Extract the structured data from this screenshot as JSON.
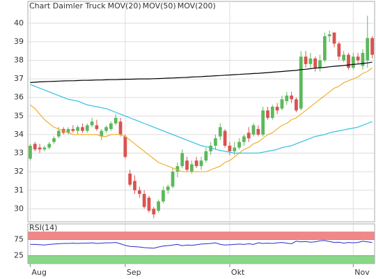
{
  "chart_data": [
    {
      "type": "candlestick",
      "title": "Chart Daimler Truck",
      "categories": [
        "Aug",
        null,
        null,
        null,
        null,
        null,
        null,
        null,
        null,
        null,
        null,
        null,
        null,
        null,
        null,
        null,
        null,
        null,
        null,
        null,
        "Sep",
        null,
        null,
        null,
        null,
        null,
        null,
        null,
        null,
        null,
        null,
        null,
        null,
        null,
        null,
        null,
        null,
        null,
        null,
        null,
        null,
        null,
        "Okt",
        null,
        null,
        null,
        null,
        null,
        null,
        null,
        null,
        null,
        null,
        null,
        null,
        null,
        null,
        null,
        null,
        null,
        null,
        null,
        null,
        null,
        null,
        null,
        null,
        null,
        "Nov",
        null,
        null,
        null,
        null
      ],
      "open": [
        32.7,
        33.5,
        33.3,
        33.2,
        33.3,
        33.6,
        33.9,
        34.3,
        34.1,
        34.3,
        34.2,
        34.4,
        34.2,
        34.5,
        34.5,
        33.9,
        34.2,
        34.3,
        34.6,
        34.7,
        33.9,
        31.9,
        31.5,
        31.0,
        30.8,
        30.6,
        30.0,
        29.9,
        30.4,
        31.0,
        31.2,
        32.0,
        32.3,
        32.6,
        32.0,
        32.6,
        32.3,
        32.6,
        33.1,
        33.4,
        33.9,
        34.2,
        33.4,
        33.1,
        33.3,
        33.6,
        34.1,
        34.0,
        34.3,
        34.0,
        35.3,
        34.9,
        35.5,
        35.4,
        35.8,
        36.1,
        35.9,
        35.4,
        38.2,
        37.8,
        38.1,
        37.6,
        38.0,
        39.3,
        39.5,
        38.9,
        38.0,
        38.3,
        37.6,
        38.2,
        37.7,
        38.0,
        39.2
      ],
      "high": [
        33.5,
        33.6,
        33.5,
        33.4,
        33.6,
        33.9,
        34.4,
        34.4,
        34.4,
        34.5,
        34.5,
        34.6,
        34.6,
        34.9,
        34.8,
        34.3,
        34.5,
        34.7,
        35.1,
        34.9,
        34.0,
        32.1,
        31.8,
        31.2,
        31.0,
        30.7,
        30.1,
        30.5,
        31.2,
        31.3,
        32.2,
        32.5,
        33.2,
        32.8,
        32.6,
        32.8,
        32.8,
        33.3,
        33.6,
        34.0,
        34.6,
        34.3,
        33.6,
        33.6,
        33.8,
        34.0,
        34.4,
        34.6,
        34.5,
        35.5,
        35.5,
        35.6,
        35.7,
        36.1,
        36.3,
        36.3,
        36.0,
        38.5,
        38.5,
        38.4,
        38.2,
        38.3,
        39.5,
        39.6,
        39.5,
        39.0,
        38.5,
        38.4,
        38.4,
        38.4,
        38.6,
        40.4,
        39.3
      ],
      "low": [
        32.6,
        33.1,
        33.0,
        33.1,
        33.2,
        33.5,
        33.8,
        34.0,
        34.0,
        34.1,
        34.0,
        34.1,
        34.1,
        34.4,
        34.2,
        33.7,
        34.1,
        34.2,
        34.5,
        33.9,
        32.7,
        31.2,
        30.8,
        30.6,
        30.0,
        29.8,
        29.5,
        29.8,
        30.3,
        30.8,
        31.1,
        31.7,
        32.2,
        32.0,
        31.9,
        32.2,
        32.1,
        32.5,
        32.9,
        33.2,
        33.7,
        33.3,
        32.9,
        32.9,
        33.2,
        33.4,
        33.6,
        33.9,
        33.9,
        33.9,
        34.8,
        34.8,
        35.1,
        35.3,
        35.6,
        35.7,
        35.2,
        35.3,
        37.6,
        37.6,
        37.4,
        37.4,
        37.9,
        39.0,
        38.7,
        38.0,
        37.9,
        37.5,
        37.5,
        37.8,
        37.5,
        37.6,
        38.1
      ],
      "close": [
        33.4,
        33.2,
        33.2,
        33.3,
        33.5,
        33.8,
        34.2,
        34.1,
        34.3,
        34.2,
        34.4,
        34.2,
        34.5,
        34.7,
        34.3,
        34.2,
        34.4,
        34.6,
        34.9,
        34.0,
        32.8,
        31.3,
        31.0,
        30.8,
        30.1,
        29.9,
        29.7,
        30.4,
        31.0,
        31.2,
        32.0,
        32.3,
        33.0,
        32.1,
        32.4,
        32.3,
        32.6,
        33.1,
        33.4,
        33.8,
        34.4,
        33.4,
        33.1,
        33.3,
        33.6,
        33.9,
        33.8,
        34.5,
        34.0,
        35.3,
        34.9,
        35.5,
        35.3,
        35.9,
        36.1,
        35.9,
        35.3,
        38.2,
        37.8,
        38.1,
        37.6,
        38.0,
        39.3,
        39.4,
        38.9,
        38.2,
        38.3,
        37.6,
        38.2,
        38.0,
        38.4,
        39.2,
        38.3
      ],
      "up_color": "#5cb85c",
      "down_color": "#d9534f",
      "series": [
        {
          "name": "MOV(20)",
          "color": "#f0b030",
          "values": [
            35.6,
            35.4,
            35.1,
            34.8,
            34.6,
            34.4,
            34.3,
            34.2,
            34.1,
            34.0,
            34.0,
            34.0,
            34.0,
            34.0,
            34.0,
            33.9,
            33.9,
            34.0,
            34.0,
            34.0,
            33.9,
            33.7,
            33.5,
            33.3,
            33.1,
            32.9,
            32.7,
            32.5,
            32.4,
            32.3,
            32.2,
            32.1,
            32.0,
            32.0,
            32.0,
            32.0,
            32.0,
            32.0,
            32.1,
            32.2,
            32.3,
            32.5,
            32.6,
            32.8,
            33.0,
            33.2,
            33.3,
            33.5,
            33.6,
            33.8,
            34.0,
            34.1,
            34.3,
            34.5,
            34.6,
            34.8,
            34.9,
            35.1,
            35.3,
            35.5,
            35.7,
            35.9,
            36.1,
            36.3,
            36.5,
            36.6,
            36.8,
            36.9,
            37.0,
            37.1,
            37.3,
            37.4,
            37.6
          ]
        },
        {
          "name": "MOV(50)",
          "color": "#30c0e0",
          "values": [
            36.7,
            36.6,
            36.5,
            36.4,
            36.3,
            36.2,
            36.1,
            36.0,
            35.9,
            35.85,
            35.8,
            35.7,
            35.6,
            35.55,
            35.5,
            35.45,
            35.4,
            35.3,
            35.2,
            35.1,
            35.0,
            34.9,
            34.8,
            34.7,
            34.6,
            34.5,
            34.4,
            34.3,
            34.2,
            34.1,
            34.0,
            33.9,
            33.8,
            33.7,
            33.6,
            33.5,
            33.4,
            33.35,
            33.3,
            33.2,
            33.15,
            33.1,
            33.05,
            33.0,
            33.0,
            33.0,
            33.0,
            33.0,
            33.0,
            33.05,
            33.1,
            33.15,
            33.2,
            33.3,
            33.35,
            33.4,
            33.5,
            33.6,
            33.7,
            33.8,
            33.9,
            33.95,
            34.0,
            34.1,
            34.15,
            34.2,
            34.25,
            34.3,
            34.35,
            34.4,
            34.5,
            34.6,
            34.7
          ]
        },
        {
          "name": "MOV(200)",
          "color": "#000000",
          "values": [
            36.8,
            36.82,
            36.84,
            36.85,
            36.86,
            36.87,
            36.88,
            36.89,
            36.9,
            36.9,
            36.91,
            36.92,
            36.92,
            36.93,
            36.94,
            36.94,
            36.95,
            36.96,
            36.96,
            36.97,
            36.98,
            36.98,
            36.99,
            37.0,
            37.0,
            37.0,
            37.01,
            37.02,
            37.03,
            37.04,
            37.05,
            37.06,
            37.07,
            37.08,
            37.1,
            37.11,
            37.12,
            37.14,
            37.15,
            37.17,
            37.18,
            37.2,
            37.21,
            37.23,
            37.24,
            37.26,
            37.27,
            37.29,
            37.3,
            37.32,
            37.34,
            37.36,
            37.38,
            37.4,
            37.42,
            37.44,
            37.46,
            37.5,
            37.52,
            37.55,
            37.58,
            37.6,
            37.62,
            37.65,
            37.68,
            37.7,
            37.72,
            37.75,
            37.78,
            37.8,
            37.83,
            37.86,
            37.9
          ]
        }
      ],
      "ylim": [
        29.3,
        41.1
      ],
      "yticks": [
        30,
        31,
        32,
        33,
        34,
        35,
        36,
        37,
        38,
        39,
        40
      ],
      "grid": true
    },
    {
      "type": "line",
      "title": "RSI(14)",
      "color": "#2a2ad0",
      "values": [
        60,
        60,
        59,
        58,
        60,
        61,
        62,
        63,
        63,
        64,
        63,
        64,
        64,
        65,
        63,
        64,
        65,
        65,
        66,
        62,
        57,
        54,
        53,
        52,
        50,
        49,
        48,
        52,
        55,
        56,
        58,
        60,
        56,
        58,
        57,
        59,
        61,
        62,
        63,
        65,
        60,
        58,
        59,
        60,
        61,
        60,
        62,
        60,
        65,
        63,
        64,
        63,
        65,
        66,
        64,
        62,
        70,
        68,
        69,
        67,
        68,
        71,
        72,
        69,
        66,
        67,
        64,
        66,
        65,
        66,
        70,
        68,
        66
      ],
      "ylim": [
        0,
        100
      ],
      "yticks": [
        25,
        75
      ],
      "band_colors": [
        "#88d888",
        "#f08888"
      ]
    }
  ]
}
